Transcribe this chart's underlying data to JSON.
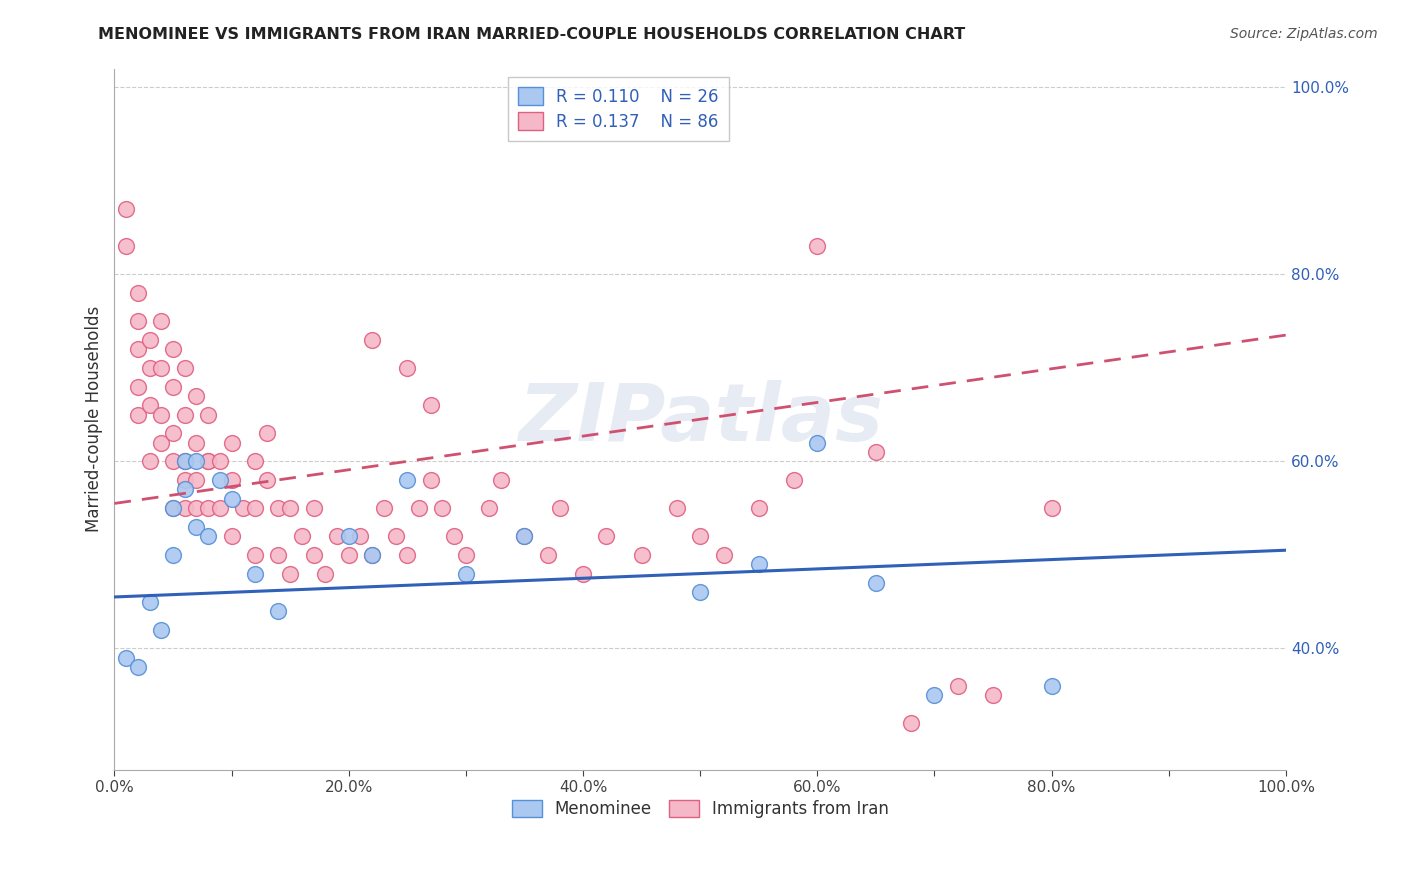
{
  "title": "MENOMINEE VS IMMIGRANTS FROM IRAN MARRIED-COUPLE HOUSEHOLDS CORRELATION CHART",
  "source": "Source: ZipAtlas.com",
  "ylabel": "Married-couple Households",
  "blue_R": "0.110",
  "blue_N": "26",
  "pink_R": "0.137",
  "pink_N": "86",
  "blue_fill_color": "#aac8f0",
  "pink_fill_color": "#f5b8c8",
  "blue_edge_color": "#5590d8",
  "pink_edge_color": "#e06080",
  "blue_line_color": "#3060b8",
  "pink_line_color": "#d05070",
  "watermark": "ZIPatlas",
  "xlim": [
    0.0,
    1.0
  ],
  "ylim": [
    0.27,
    1.02
  ],
  "blue_scatter_x": [
    0.01,
    0.02,
    0.03,
    0.04,
    0.05,
    0.05,
    0.06,
    0.06,
    0.07,
    0.07,
    0.08,
    0.09,
    0.1,
    0.12,
    0.14,
    0.2,
    0.22,
    0.25,
    0.3,
    0.35,
    0.5,
    0.55,
    0.6,
    0.65,
    0.7,
    0.8
  ],
  "blue_scatter_y": [
    0.39,
    0.38,
    0.45,
    0.42,
    0.5,
    0.55,
    0.57,
    0.6,
    0.53,
    0.6,
    0.52,
    0.58,
    0.56,
    0.48,
    0.44,
    0.52,
    0.5,
    0.58,
    0.48,
    0.52,
    0.46,
    0.49,
    0.62,
    0.47,
    0.35,
    0.36
  ],
  "pink_scatter_x": [
    0.01,
    0.01,
    0.02,
    0.02,
    0.02,
    0.02,
    0.02,
    0.03,
    0.03,
    0.03,
    0.03,
    0.04,
    0.04,
    0.04,
    0.04,
    0.05,
    0.05,
    0.05,
    0.05,
    0.05,
    0.06,
    0.06,
    0.06,
    0.06,
    0.06,
    0.07,
    0.07,
    0.07,
    0.07,
    0.08,
    0.08,
    0.08,
    0.08,
    0.09,
    0.09,
    0.1,
    0.1,
    0.1,
    0.11,
    0.12,
    0.12,
    0.12,
    0.13,
    0.13,
    0.14,
    0.14,
    0.15,
    0.15,
    0.16,
    0.17,
    0.17,
    0.18,
    0.19,
    0.2,
    0.21,
    0.22,
    0.23,
    0.24,
    0.25,
    0.26,
    0.27,
    0.28,
    0.29,
    0.3,
    0.32,
    0.33,
    0.35,
    0.37,
    0.38,
    0.4,
    0.42,
    0.45,
    0.48,
    0.5,
    0.52,
    0.55,
    0.58,
    0.6,
    0.65,
    0.68,
    0.72,
    0.75,
    0.8,
    0.22,
    0.25,
    0.27
  ],
  "pink_scatter_y": [
    0.87,
    0.83,
    0.78,
    0.75,
    0.72,
    0.68,
    0.65,
    0.73,
    0.7,
    0.66,
    0.6,
    0.75,
    0.7,
    0.65,
    0.62,
    0.6,
    0.63,
    0.68,
    0.72,
    0.55,
    0.58,
    0.6,
    0.65,
    0.7,
    0.55,
    0.58,
    0.62,
    0.67,
    0.55,
    0.6,
    0.65,
    0.55,
    0.6,
    0.6,
    0.55,
    0.52,
    0.58,
    0.62,
    0.55,
    0.5,
    0.55,
    0.6,
    0.58,
    0.63,
    0.5,
    0.55,
    0.48,
    0.55,
    0.52,
    0.5,
    0.55,
    0.48,
    0.52,
    0.5,
    0.52,
    0.5,
    0.55,
    0.52,
    0.5,
    0.55,
    0.58,
    0.55,
    0.52,
    0.5,
    0.55,
    0.58,
    0.52,
    0.5,
    0.55,
    0.48,
    0.52,
    0.5,
    0.55,
    0.52,
    0.5,
    0.55,
    0.58,
    0.83,
    0.61,
    0.32,
    0.36,
    0.35,
    0.55,
    0.73,
    0.7,
    0.66
  ],
  "blue_line_x": [
    0.0,
    1.0
  ],
  "blue_line_y": [
    0.455,
    0.505
  ],
  "pink_line_x": [
    0.0,
    1.0
  ],
  "pink_line_y": [
    0.555,
    0.735
  ],
  "right_yticks": [
    0.4,
    0.6,
    0.8,
    1.0
  ],
  "right_ytick_labels": [
    "40.0%",
    "60.0%",
    "80.0%",
    "100.0%"
  ],
  "xticks": [
    0.0,
    0.1,
    0.2,
    0.3,
    0.4,
    0.5,
    0.6,
    0.7,
    0.8,
    0.9,
    1.0
  ],
  "xtick_labels": [
    "0.0%",
    "",
    "20.0%",
    "",
    "40.0%",
    "",
    "60.0%",
    "",
    "80.0%",
    "",
    "100.0%"
  ]
}
